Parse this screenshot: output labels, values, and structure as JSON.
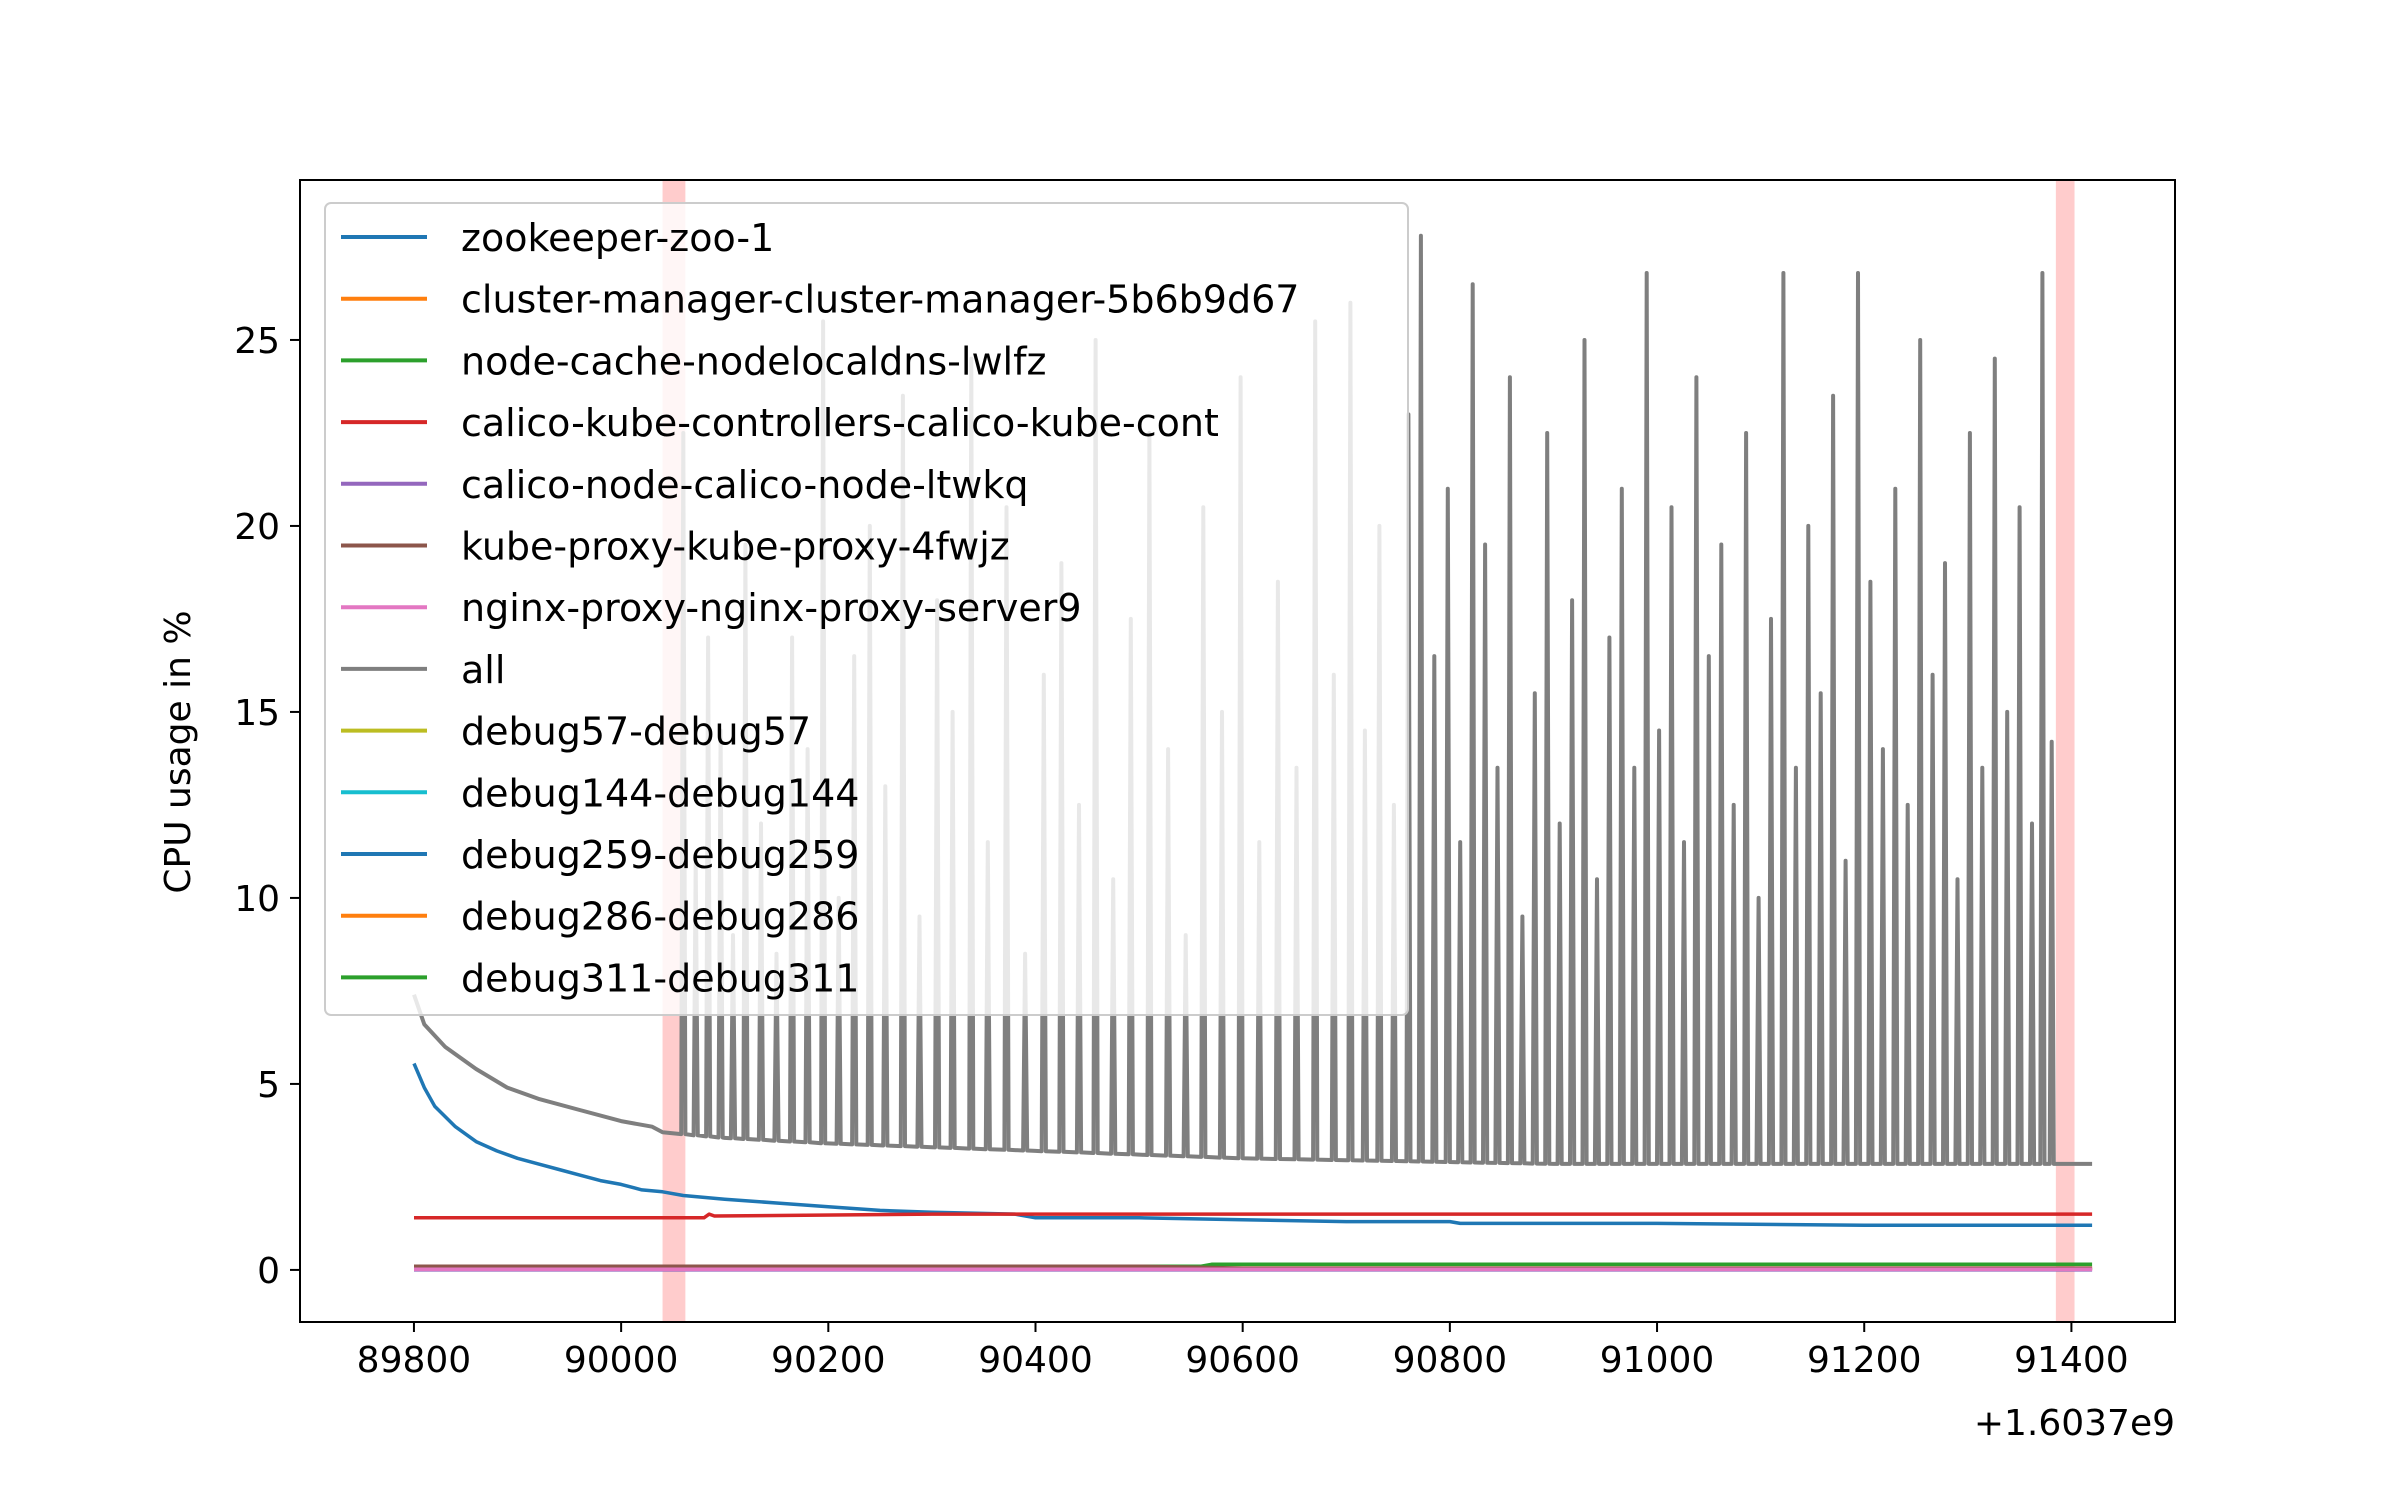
{
  "chart_data": {
    "type": "line",
    "xlabel": "",
    "ylabel": "CPU usage in %",
    "x_offset_label": "+1.6037e9",
    "xlim": [
      89690,
      91500
    ],
    "ylim": [
      -1.4,
      29.3
    ],
    "x_ticks": [
      89800,
      90000,
      90200,
      90400,
      90600,
      90800,
      91000,
      91200,
      91400
    ],
    "y_ticks": [
      0,
      5,
      10,
      15,
      20,
      25
    ],
    "grid": false,
    "legend_position": "upper-left",
    "highlight_bands": [
      {
        "x_start": 90040,
        "x_end": 90062,
        "color": "#ffcccc"
      },
      {
        "x_start": 91385,
        "x_end": 91403,
        "color": "#ffcccc"
      }
    ],
    "series": [
      {
        "name": "zookeeper-zoo-1",
        "color": "#1f77b4",
        "points": [
          [
            89800,
            5.55
          ],
          [
            89810,
            4.9
          ],
          [
            89820,
            4.4
          ],
          [
            89840,
            3.85
          ],
          [
            89860,
            3.45
          ],
          [
            89880,
            3.2
          ],
          [
            89900,
            3.0
          ],
          [
            89920,
            2.85
          ],
          [
            89940,
            2.7
          ],
          [
            89960,
            2.55
          ],
          [
            89980,
            2.4
          ],
          [
            90000,
            2.3
          ],
          [
            90020,
            2.15
          ],
          [
            90040,
            2.1
          ],
          [
            90060,
            2.0
          ],
          [
            90100,
            1.9
          ],
          [
            90150,
            1.8
          ],
          [
            90200,
            1.7
          ],
          [
            90250,
            1.6
          ],
          [
            90300,
            1.55
          ],
          [
            90380,
            1.5
          ],
          [
            90400,
            1.4
          ],
          [
            90500,
            1.4
          ],
          [
            90600,
            1.35
          ],
          [
            90700,
            1.3
          ],
          [
            90800,
            1.3
          ],
          [
            90810,
            1.25
          ],
          [
            91000,
            1.25
          ],
          [
            91200,
            1.2
          ],
          [
            91420,
            1.2
          ]
        ]
      },
      {
        "name": "cluster-manager-cluster-manager-5b6b9d67",
        "color": "#ff7f0e",
        "points": [
          [
            89800,
            0.05
          ],
          [
            91420,
            0.05
          ]
        ]
      },
      {
        "name": "node-cache-nodelocaldns-lwlfz",
        "color": "#2ca02c",
        "points": [
          [
            89800,
            0.1
          ],
          [
            90560,
            0.1
          ],
          [
            90570,
            0.15
          ],
          [
            91420,
            0.15
          ]
        ]
      },
      {
        "name": "calico-kube-controllers-calico-kube-cont",
        "color": "#d62728",
        "points": [
          [
            89800,
            1.4
          ],
          [
            90080,
            1.4
          ],
          [
            90085,
            1.5
          ],
          [
            90090,
            1.45
          ],
          [
            90300,
            1.5
          ],
          [
            91420,
            1.5
          ]
        ]
      },
      {
        "name": "calico-node-calico-node-ltwkq",
        "color": "#9467bd",
        "points": [
          [
            89800,
            0.0
          ],
          [
            91420,
            0.0
          ]
        ]
      },
      {
        "name": "kube-proxy-kube-proxy-4fwjz",
        "color": "#8c564b",
        "points": [
          [
            89800,
            0.1
          ],
          [
            90500,
            0.1
          ],
          [
            90600,
            0.05
          ],
          [
            91420,
            0.05
          ]
        ]
      },
      {
        "name": "nginx-proxy-nginx-proxy-server9",
        "color": "#e377c2",
        "points": [
          [
            89800,
            0.02
          ],
          [
            91420,
            0.02
          ]
        ]
      },
      {
        "name": "all",
        "color": "#7f7f7f",
        "baseline": [
          [
            89800,
            7.4
          ],
          [
            89810,
            6.6
          ],
          [
            89830,
            6.0
          ],
          [
            89860,
            5.4
          ],
          [
            89890,
            4.9
          ],
          [
            89920,
            4.6
          ],
          [
            89960,
            4.3
          ],
          [
            90000,
            4.0
          ],
          [
            90030,
            3.85
          ],
          [
            90040,
            3.7
          ],
          [
            90100,
            3.55
          ],
          [
            90200,
            3.4
          ],
          [
            90300,
            3.3
          ],
          [
            90400,
            3.2
          ],
          [
            90500,
            3.1
          ],
          [
            90600,
            3.0
          ],
          [
            90700,
            2.95
          ],
          [
            90800,
            2.9
          ],
          [
            90900,
            2.85
          ],
          [
            91000,
            2.85
          ],
          [
            91200,
            2.85
          ],
          [
            91420,
            2.85
          ]
        ],
        "spikes": [
          [
            90060,
            22.5
          ],
          [
            90072,
            11.0
          ],
          [
            90084,
            17.0
          ],
          [
            90096,
            14.5
          ],
          [
            90108,
            9.0
          ],
          [
            90120,
            19.5
          ],
          [
            90135,
            12.0
          ],
          [
            90150,
            8.5
          ],
          [
            90165,
            17.0
          ],
          [
            90180,
            14.0
          ],
          [
            90195,
            25.5
          ],
          [
            90210,
            10.0
          ],
          [
            90225,
            16.5
          ],
          [
            90240,
            20.0
          ],
          [
            90255,
            13.0
          ],
          [
            90272,
            23.5
          ],
          [
            90288,
            9.5
          ],
          [
            90305,
            18.0
          ],
          [
            90320,
            15.0
          ],
          [
            90338,
            24.5
          ],
          [
            90354,
            11.5
          ],
          [
            90372,
            20.5
          ],
          [
            90390,
            8.5
          ],
          [
            90408,
            16.0
          ],
          [
            90425,
            19.0
          ],
          [
            90442,
            12.5
          ],
          [
            90458,
            25.0
          ],
          [
            90475,
            10.5
          ],
          [
            90492,
            17.5
          ],
          [
            90510,
            22.5
          ],
          [
            90528,
            14.0
          ],
          [
            90545,
            9.0
          ],
          [
            90562,
            20.5
          ],
          [
            90580,
            15.0
          ],
          [
            90598,
            24.0
          ],
          [
            90616,
            11.5
          ],
          [
            90634,
            18.5
          ],
          [
            90652,
            13.5
          ],
          [
            90670,
            25.5
          ],
          [
            90688,
            16.0
          ],
          [
            90704,
            26.0
          ],
          [
            90718,
            14.5
          ],
          [
            90732,
            20.0
          ],
          [
            90746,
            12.5
          ],
          [
            90760,
            23.0
          ],
          [
            90772,
            27.8
          ],
          [
            90785,
            16.5
          ],
          [
            90798,
            21.0
          ],
          [
            90810,
            11.5
          ],
          [
            90822,
            26.5
          ],
          [
            90834,
            19.5
          ],
          [
            90846,
            13.5
          ],
          [
            90858,
            24.0
          ],
          [
            90870,
            9.5
          ],
          [
            90882,
            15.5
          ],
          [
            90894,
            22.5
          ],
          [
            90906,
            12.0
          ],
          [
            90918,
            18.0
          ],
          [
            90930,
            25.0
          ],
          [
            90942,
            10.5
          ],
          [
            90954,
            17.0
          ],
          [
            90966,
            21.0
          ],
          [
            90978,
            13.5
          ],
          [
            90990,
            26.8
          ],
          [
            91002,
            14.5
          ],
          [
            91014,
            20.5
          ],
          [
            91026,
            11.5
          ],
          [
            91038,
            24.0
          ],
          [
            91050,
            16.5
          ],
          [
            91062,
            19.5
          ],
          [
            91074,
            12.5
          ],
          [
            91086,
            22.5
          ],
          [
            91098,
            10.0
          ],
          [
            91110,
            17.5
          ],
          [
            91122,
            26.8
          ],
          [
            91134,
            13.5
          ],
          [
            91146,
            20.0
          ],
          [
            91158,
            15.5
          ],
          [
            91170,
            23.5
          ],
          [
            91182,
            11.0
          ],
          [
            91194,
            26.8
          ],
          [
            91206,
            18.5
          ],
          [
            91218,
            14.0
          ],
          [
            91230,
            21.0
          ],
          [
            91242,
            12.5
          ],
          [
            91254,
            25.0
          ],
          [
            91266,
            16.0
          ],
          [
            91278,
            19.0
          ],
          [
            91290,
            10.5
          ],
          [
            91302,
            22.5
          ],
          [
            91314,
            13.5
          ],
          [
            91326,
            24.5
          ],
          [
            91338,
            15.0
          ],
          [
            91350,
            20.5
          ],
          [
            91362,
            12.0
          ],
          [
            91372,
            26.8
          ],
          [
            91381,
            14.2
          ]
        ]
      },
      {
        "name": "debug57-debug57",
        "color": "#bcbd22",
        "points": []
      },
      {
        "name": "debug144-debug144",
        "color": "#17becf",
        "points": []
      },
      {
        "name": "debug259-debug259",
        "color": "#1f77b4",
        "points": []
      },
      {
        "name": "debug286-debug286",
        "color": "#ff7f0e",
        "points": []
      },
      {
        "name": "debug311-debug311",
        "color": "#2ca02c",
        "points": []
      }
    ]
  }
}
